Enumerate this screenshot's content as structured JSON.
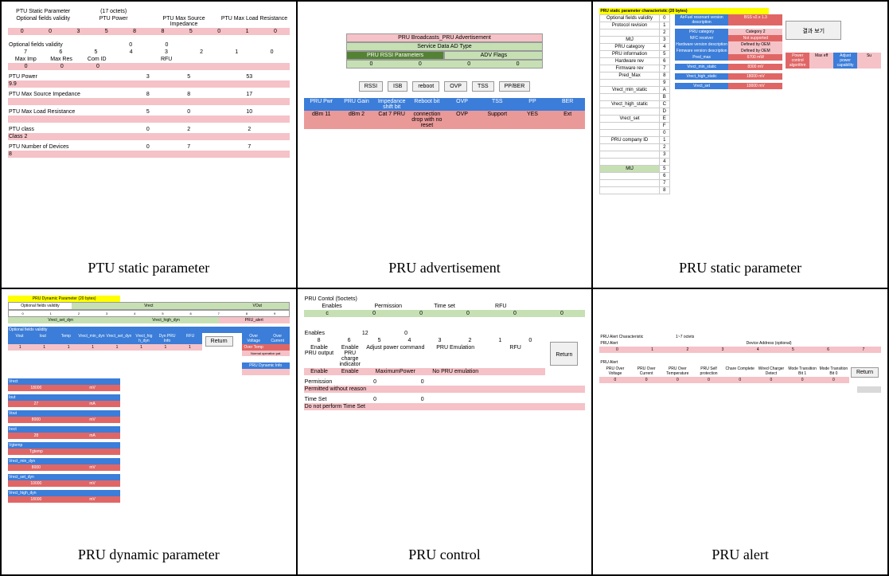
{
  "captions": {
    "c1": "PTU static parameter",
    "c2": "PRU advertisement",
    "c3": "PRU static parameter",
    "c4": "PRU dynamic parameter",
    "c5": "PRU control",
    "c6": "PRU alert"
  },
  "colors": {
    "pink": "#f5c2c7",
    "blue": "#3b7dd8",
    "green": "#c6e0b4",
    "dgreen": "#548235",
    "yellow": "#ffff00",
    "gray": "#d9d9d9"
  },
  "panel1": {
    "title": "PTU Static Parameter",
    "octets": "(17 octets)",
    "hdr": [
      "Optional fields validity",
      "PTU Power",
      "PTU Max Source Impedance",
      "PTU Max Load Resistance"
    ],
    "r1": [
      "0",
      "0",
      "3",
      "5",
      "8",
      "8",
      "5",
      "0",
      "1",
      "0"
    ],
    "ofv_label": "Optional fields validity",
    "ofv_vals": [
      "0",
      "0"
    ],
    "r2h": [
      "7",
      "6",
      "5",
      "4",
      "3",
      "2",
      "1",
      "0"
    ],
    "r2l": [
      "Max Imp",
      "Max Res",
      "Com ID",
      "",
      "",
      "RFU",
      "",
      ""
    ],
    "r2v": [
      "0",
      "0",
      "0"
    ],
    "ptupower": "PTU Power",
    "ptupower_v": [
      "3",
      "5",
      "53"
    ],
    "ptupower_val": "9.9",
    "msi": "PTU Max Source Impedance",
    "msi_v": [
      "8",
      "8",
      "17"
    ],
    "mlr": "PTU Max Load Resistance",
    "mlr_v": [
      "5",
      "0",
      "10"
    ],
    "cls": "PTU class",
    "cls_v": [
      "0",
      "2",
      "2"
    ],
    "cls_val": "Class 2",
    "nod": "PTU Number of Devices",
    "nod_v": [
      "0",
      "7",
      "7"
    ],
    "nod_val": "8"
  },
  "panel2": {
    "t1": "PRU Broadcasts_PRU Advertisement",
    "t2": "Service Data AD Type",
    "t3a": "PRU RSSI Parameters",
    "t3b": "ADV Flags",
    "t4": [
      "0",
      "0",
      "0",
      "0"
    ],
    "btns": [
      "RSSI",
      "ISB",
      "reboot",
      "OVP",
      "TSS",
      "PP/BER"
    ],
    "bh": [
      "PRU Pwr",
      "PRU Gain",
      "Impedance shift bit",
      "Reboot bit",
      "OVP",
      "TSS",
      "PP",
      "BER"
    ],
    "bv": [
      "dBm 11",
      "dBm 2",
      "Cat 7 PRU",
      "connection drop with no reset",
      "OVP",
      "Support",
      "YES",
      "Ext"
    ]
  },
  "panel3": {
    "title": "PRU static parameter characteristic (20 bytes)",
    "leftrows": [
      "Optional fields validity",
      "Protocol revision",
      "",
      "MtJ",
      "PRU category",
      "PRU information",
      "Hardware rev",
      "Firmware rev",
      "Pred_Max",
      "",
      "Vrect_min_static",
      "",
      "Vrect_high_static",
      "",
      "Vrect_set",
      "",
      "",
      "PRU company ID",
      "",
      "",
      "",
      "MtJ",
      "",
      "",
      ""
    ],
    "mid_labels": [
      "AirFuel resonant version description",
      "PRU category",
      "NFC receiver",
      "Hardware version description",
      "Firmware version description",
      "Pred_max",
      "Vrect_min_static",
      "Vrect_high_static",
      "Vrect_set"
    ],
    "mid_vals": [
      "BSS v2.x 1.3",
      "Category 2",
      "Not supported",
      "Defined by OEM",
      "Defined by OEM",
      "6700   mW",
      "8300   mV",
      "18000   mV",
      "10000   mV"
    ],
    "right": [
      "Power control algorithm",
      "Max eff",
      "Adjust power capability",
      "Su"
    ],
    "btn": "결과 보기"
  },
  "panel4": {
    "title": "PRU Dynamic Parameter (20 bytes)",
    "toph": [
      "Optional fields validity",
      "",
      "",
      "Vrect",
      "",
      "",
      "",
      "",
      "",
      "",
      "VOut"
    ],
    "sub": [
      "",
      "",
      "",
      "",
      "",
      "Vrect_set_dyn",
      "",
      "",
      "",
      "Vrect_high_dyn",
      "",
      "",
      "",
      "",
      "PRU_alert"
    ],
    "hdr2": "Optional fields validity",
    "hdr3": [
      "Vout",
      "Iout",
      "Temp",
      "Vrect_min_dyn",
      "Vrect_set_dyn",
      "Vrect_hig h_dyn",
      "Dyn PRU Info",
      "RFU"
    ],
    "btn": "Return",
    "right": [
      "Over Voltage",
      "Over Current",
      "Over Temp",
      "Normal operation pat"
    ],
    "rows": [
      {
        "l": "Vrect",
        "v": "18000",
        "u": "mV"
      },
      {
        "l": "Iout",
        "v": "27",
        "u": "mA"
      },
      {
        "l": "Vout",
        "v": "8000",
        "u": "mV"
      },
      {
        "l": "Irect",
        "v": "28",
        "u": "mA"
      },
      {
        "l": "Vgtemp",
        "v": "Tgtemp",
        "u": ""
      },
      {
        "l": "Vrect_min_dyn",
        "v": "8000",
        "u": "mV"
      },
      {
        "l": "Vrect_set_dyn",
        "v": "10000",
        "u": "mV"
      },
      {
        "l": "Vrect_high_dyn",
        "v": "18000",
        "u": "mV"
      }
    ],
    "dyninfo": "PRU Dynamic Info"
  },
  "panel5": {
    "title": "PRU Contol     (5octets)",
    "hdr": [
      "Enables",
      "Permission",
      "Time set",
      "RFU"
    ],
    "r0": [
      "0",
      "0",
      "0",
      "0",
      "0",
      "0"
    ],
    "enables": "Enables",
    "en_v": [
      "12",
      "0"
    ],
    "en_h": [
      "8",
      "6",
      "5",
      "4",
      "3",
      "2",
      "1",
      "0"
    ],
    "en_l": [
      "Enable PRU output",
      "Enable PRU charge indicator",
      "Adjust power command",
      "",
      "PRU Emulation",
      "",
      "RFU",
      ""
    ],
    "en_res": [
      "Enable",
      "Enable",
      "MaximumPower",
      "No PRU emulation"
    ],
    "perm": "Permission",
    "perm_v": [
      "0",
      "0"
    ],
    "perm_res": "Permitted without reason",
    "ts": "Time Set",
    "ts_v": [
      "0",
      "0"
    ],
    "ts_res": "Do not perform Time Set",
    "btn": "Return"
  },
  "panel6": {
    "t1": "PRU Alert Characteristic",
    "t2": "PRU Alert",
    "t3": "1~7 octets",
    "t4": "Device Address (optional)",
    "pa": "PRU Alert",
    "hdr": [
      "PRU Over Voltage",
      "PRU Over Current",
      "PRU Over Temperature",
      "PRU Self protection",
      "Chare Complete",
      "Wired Charger Detect",
      "Mode Transition Bit 1",
      "Mode Transition Bit 0"
    ],
    "vals": [
      "0",
      "0",
      "0",
      "0",
      "0",
      "0",
      "0",
      "0"
    ],
    "btn": "Return"
  }
}
